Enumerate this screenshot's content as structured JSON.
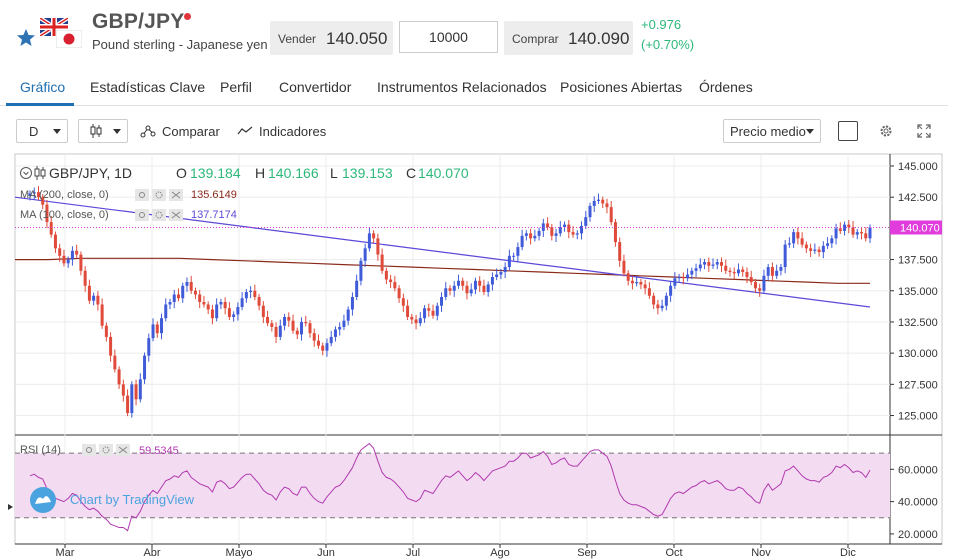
{
  "header": {
    "title": "GBP/JPY",
    "subtitle": "Pound sterling - Japanese yen",
    "sell_label": "Vender",
    "sell_value": "140.050",
    "quantity": "10000",
    "buy_label": "Comprar",
    "buy_value": "140.090",
    "change_abs": "+0.976",
    "change_pct": "(+0.70%)",
    "change_color": "#2db87a",
    "star_color": "#2f73b5"
  },
  "tabs": [
    {
      "label": "Gráfico",
      "active": true
    },
    {
      "label": "Estadísticas Clave",
      "active": false
    },
    {
      "label": "Perfil",
      "active": false
    },
    {
      "label": "Convertidor",
      "active": false
    },
    {
      "label": "Instrumentos Relacionados",
      "active": false
    },
    {
      "label": "Posiciones Abiertas",
      "active": false
    },
    {
      "label": "Órdenes",
      "active": false
    }
  ],
  "toolbar": {
    "interval": "D",
    "compare_label": "Comparar",
    "indicators_label": "Indicadores",
    "price_type": "Precio medio"
  },
  "chart_data": {
    "type": "candlestick",
    "symbol_label": "GBP/JPY, 1D",
    "ohlc": {
      "o_label": "O",
      "o": "139.184",
      "h_label": "H",
      "h": "140.166",
      "l_label": "L",
      "l": "139.153",
      "c_label": "C",
      "c": "140.070"
    },
    "last_price": "140.070",
    "ma200_label": "MA (200, close, 0)",
    "ma200_value": "135.6149",
    "ma100_label": "MA (100, close, 0)",
    "ma100_value": "137.7174",
    "rsi_label": "RSI (14)",
    "rsi_value": "59.5345",
    "watermark": "Chart by TradingView",
    "price_ticks": [
      "145.000",
      "142.500",
      "140.070",
      "137.500",
      "135.000",
      "132.500",
      "130.000",
      "127.500",
      "125.000"
    ],
    "rsi_ticks": [
      "60.0000",
      "40.0000",
      "20.0000"
    ],
    "months": [
      "Mar",
      "Abr",
      "Mayo",
      "Jun",
      "Jul",
      "Ago",
      "Sep",
      "Oct",
      "Nov",
      "Dic"
    ],
    "ylim": [
      123.6,
      145.8
    ],
    "rsi_ylim": [
      15,
      80
    ],
    "rsi_band": [
      30,
      70
    ],
    "up_color": "#3f5bd8",
    "down_color": "#e04a3a",
    "ma100_color": "#5c4ad8",
    "ma200_color": "#8b2a1a",
    "rsi_color": "#b23ab0",
    "closes": [
      142.8,
      142.9,
      142.5,
      141.9,
      140.5,
      139.5,
      138.4,
      137.8,
      137.2,
      137.5,
      138.2,
      137.9,
      136.6,
      135.4,
      134.2,
      134.6,
      133.9,
      132.2,
      131.3,
      129.8,
      128.7,
      127.5,
      126.6,
      125.2,
      127.5,
      126.3,
      127.9,
      129.8,
      131.2,
      132.3,
      131.6,
      132.8,
      133.9,
      134.1,
      134.7,
      134.4,
      135.4,
      135.7,
      135.0,
      134.7,
      134.1,
      133.9,
      133.5,
      132.8,
      133.9,
      134.1,
      133.6,
      132.9,
      133.1,
      133.7,
      134.4,
      134.9,
      135.0,
      134.5,
      133.8,
      132.9,
      132.4,
      132.1,
      131.3,
      132.2,
      132.9,
      132.6,
      131.8,
      131.5,
      132.5,
      132.4,
      131.6,
      131.0,
      130.6,
      130.2,
      130.8,
      131.3,
      131.9,
      132.1,
      132.6,
      133.5,
      134.5,
      135.8,
      137.4,
      138.4,
      139.6,
      139.2,
      137.9,
      136.6,
      135.9,
      135.7,
      135.2,
      134.4,
      133.8,
      132.9,
      132.7,
      132.4,
      132.8,
      133.6,
      133.4,
      133.0,
      133.8,
      134.5,
      135.2,
      135.0,
      135.4,
      135.8,
      135.4,
      134.8,
      135.1,
      135.8,
      135.4,
      134.9,
      135.5,
      136.1,
      136.3,
      136.5,
      136.9,
      137.8,
      137.8,
      138.5,
      139.4,
      139.6,
      139.2,
      139.4,
      139.8,
      140.4,
      140.1,
      139.4,
      139.6,
      140.1,
      140.3,
      139.7,
      139.5,
      139.6,
      140.2,
      140.9,
      141.8,
      142.2,
      142.3,
      142.0,
      141.7,
      140.5,
      138.9,
      137.4,
      136.4,
      135.8,
      135.6,
      135.7,
      135.5,
      135.2,
      134.6,
      133.9,
      133.6,
      133.8,
      134.6,
      135.4,
      136.0,
      136.1,
      136.0,
      136.3,
      136.6,
      136.8,
      137.1,
      137.3,
      137.0,
      137.1,
      137.3,
      137.0,
      136.6,
      136.5,
      136.4,
      136.7,
      136.5,
      136.1,
      135.7,
      135.2,
      135.0,
      136.2,
      136.9,
      136.2,
      136.6,
      136.9,
      138.7,
      138.8,
      139.7,
      139.2,
      138.7,
      138.4,
      138.2,
      138.3,
      138.1,
      138.6,
      138.8,
      139.2,
      140.0,
      139.8,
      140.3,
      140.1,
      139.5,
      139.7,
      139.6,
      139.2,
      140.07
    ],
    "rsi": [
      56,
      57,
      55,
      54,
      48,
      46,
      42,
      41,
      40,
      42,
      45,
      44,
      40,
      37,
      35,
      36,
      34,
      31,
      29,
      26,
      25,
      24,
      24,
      22,
      31,
      30,
      34,
      40,
      44,
      47,
      45,
      49,
      53,
      54,
      56,
      55,
      58,
      59,
      55,
      53,
      51,
      50,
      49,
      46,
      52,
      53,
      51,
      48,
      49,
      52,
      55,
      57,
      57,
      54,
      51,
      47,
      45,
      44,
      41,
      46,
      49,
      48,
      45,
      44,
      49,
      49,
      45,
      42,
      40,
      39,
      43,
      46,
      49,
      50,
      53,
      57,
      61,
      67,
      72,
      74,
      76,
      73,
      65,
      58,
      55,
      54,
      52,
      49,
      46,
      42,
      41,
      40,
      42,
      47,
      46,
      45,
      49,
      53,
      56,
      55,
      57,
      59,
      56,
      53,
      55,
      58,
      56,
      53,
      56,
      59,
      60,
      61,
      62,
      65,
      65,
      67,
      70,
      70,
      67,
      68,
      69,
      71,
      68,
      63,
      64,
      66,
      67,
      63,
      62,
      62,
      65,
      68,
      71,
      72,
      72,
      70,
      68,
      62,
      53,
      45,
      41,
      39,
      38,
      38,
      37,
      36,
      34,
      32,
      31,
      32,
      37,
      42,
      45,
      46,
      45,
      47,
      49,
      50,
      52,
      53,
      51,
      52,
      53,
      51,
      48,
      47,
      47,
      49,
      48,
      45,
      43,
      40,
      39,
      47,
      51,
      47,
      49,
      51,
      59,
      60,
      62,
      59,
      56,
      54,
      53,
      53,
      52,
      55,
      56,
      58,
      62,
      61,
      63,
      61,
      58,
      59,
      58,
      55,
      59.5
    ],
    "ma100": [
      142.5,
      142.3,
      142.1,
      141.9,
      141.7,
      141.5,
      141.3,
      141.1,
      140.9,
      140.7,
      140.5,
      140.3,
      140.1,
      139.9,
      139.7,
      139.5,
      139.3,
      139.1,
      138.9,
      138.7,
      138.5,
      138.3,
      138.1,
      137.9,
      137.7,
      137.5,
      137.3,
      137.1,
      136.9,
      136.7,
      136.5,
      136.3,
      136.1,
      135.9,
      135.7,
      135.5,
      135.3,
      135.1,
      134.9,
      134.7,
      134.5,
      134.3,
      134.1,
      133.9,
      133.7
    ],
    "ma200": [
      137.5,
      137.5,
      137.6,
      137.6,
      137.6,
      137.6,
      137.5,
      137.4,
      137.3,
      137.2,
      137.1,
      137.0,
      136.9,
      136.8,
      136.7,
      136.6,
      136.5,
      136.4,
      136.3,
      136.2,
      136.1,
      136.0,
      135.9,
      135.8,
      135.7,
      135.6,
      135.6
    ]
  }
}
